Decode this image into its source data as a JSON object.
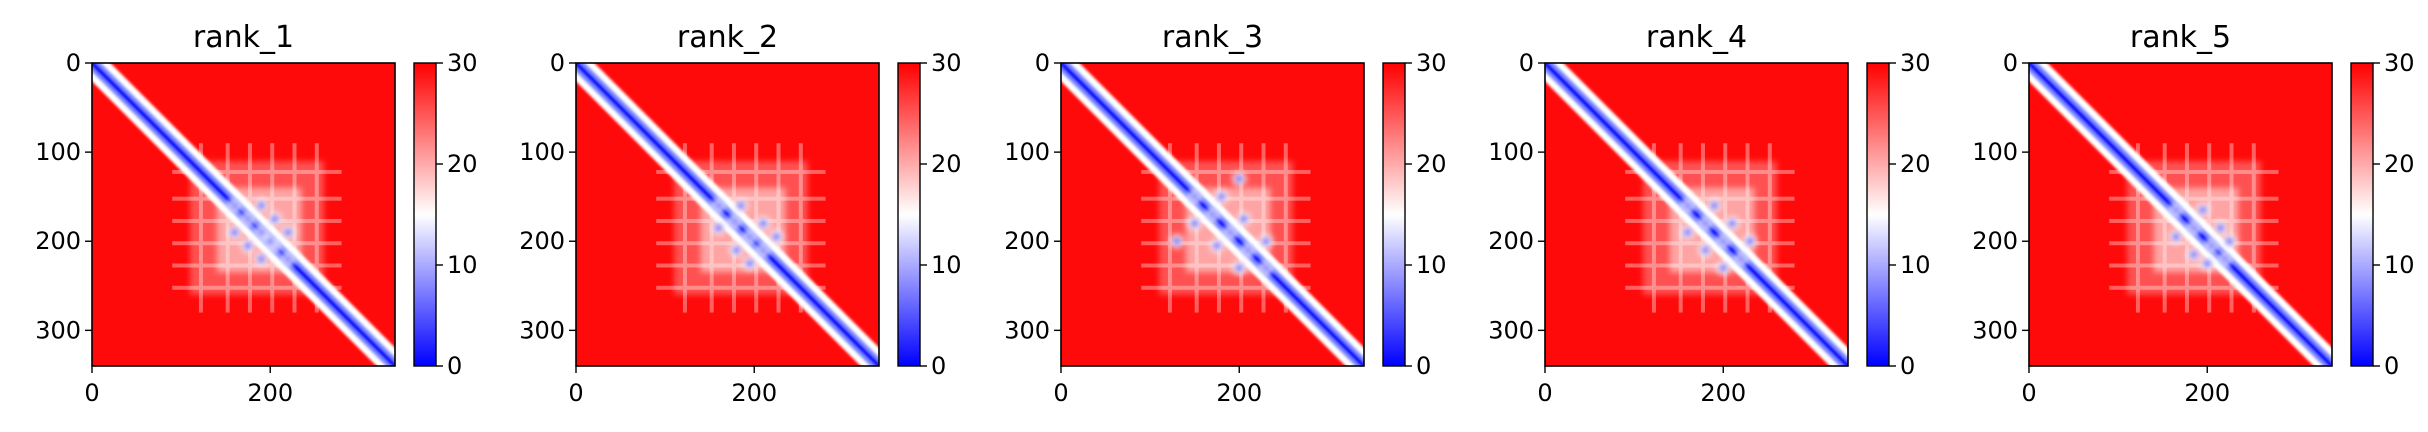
{
  "chart_data": [
    {
      "type": "heatmap",
      "title": "rank_1",
      "n": 340,
      "xlim": [
        0,
        340
      ],
      "ylim": [
        340,
        0
      ],
      "xticks": [
        0,
        200
      ],
      "yticks": [
        0,
        100,
        200,
        300
      ],
      "colorbar": {
        "min": 0,
        "max": 30,
        "ticks": [
          0,
          10,
          20,
          30
        ],
        "colormap": [
          "#0000ff",
          "#ffffff",
          "#ff0000"
        ]
      },
      "contact_blobs": [
        [
          160,
          160
        ],
        [
          175,
          175
        ],
        [
          190,
          190
        ],
        [
          205,
          205
        ],
        [
          220,
          220
        ],
        [
          160,
          190
        ],
        [
          175,
          205
        ],
        [
          190,
          220
        ],
        [
          200,
          200
        ]
      ]
    },
    {
      "type": "heatmap",
      "title": "rank_2",
      "n": 340,
      "xlim": [
        0,
        340
      ],
      "ylim": [
        340,
        0
      ],
      "xticks": [
        0,
        200
      ],
      "yticks": [
        0,
        100,
        200,
        300
      ],
      "colorbar": {
        "min": 0,
        "max": 30,
        "ticks": [
          0,
          10,
          20,
          30
        ],
        "colormap": [
          "#0000ff",
          "#ffffff",
          "#ff0000"
        ]
      },
      "contact_blobs": [
        [
          160,
          160
        ],
        [
          178,
          178
        ],
        [
          195,
          195
        ],
        [
          210,
          210
        ],
        [
          160,
          185
        ],
        [
          180,
          210
        ],
        [
          195,
          225
        ]
      ]
    },
    {
      "type": "heatmap",
      "title": "rank_3",
      "n": 340,
      "xlim": [
        0,
        340
      ],
      "ylim": [
        340,
        0
      ],
      "xticks": [
        0,
        200
      ],
      "yticks": [
        0,
        100,
        200,
        300
      ],
      "colorbar": {
        "min": 0,
        "max": 30,
        "ticks": [
          0,
          10,
          20,
          30
        ],
        "colormap": [
          "#0000ff",
          "#ffffff",
          "#ff0000"
        ]
      },
      "contact_blobs": [
        [
          150,
          150
        ],
        [
          170,
          170
        ],
        [
          190,
          190
        ],
        [
          210,
          210
        ],
        [
          230,
          230
        ],
        [
          150,
          180
        ],
        [
          175,
          205
        ],
        [
          200,
          230
        ],
        [
          130,
          200
        ]
      ]
    },
    {
      "type": "heatmap",
      "title": "rank_4",
      "n": 340,
      "xlim": [
        0,
        340
      ],
      "ylim": [
        340,
        0
      ],
      "xticks": [
        0,
        200
      ],
      "yticks": [
        0,
        100,
        200,
        300
      ],
      "colorbar": {
        "min": 0,
        "max": 30,
        "ticks": [
          0,
          10,
          20,
          30
        ],
        "colormap": [
          "#0000ff",
          "#ffffff",
          "#ff0000"
        ]
      },
      "contact_blobs": [
        [
          160,
          160
        ],
        [
          180,
          180
        ],
        [
          200,
          200
        ],
        [
          220,
          220
        ],
        [
          160,
          190
        ],
        [
          180,
          210
        ],
        [
          200,
          230
        ]
      ]
    },
    {
      "type": "heatmap",
      "title": "rank_5",
      "n": 340,
      "xlim": [
        0,
        340
      ],
      "ylim": [
        340,
        0
      ],
      "xticks": [
        0,
        200
      ],
      "yticks": [
        0,
        100,
        200,
        300
      ],
      "colorbar": {
        "min": 0,
        "max": 30,
        "ticks": [
          0,
          10,
          20,
          30
        ],
        "colormap": [
          "#0000ff",
          "#ffffff",
          "#ff0000"
        ]
      },
      "contact_blobs": [
        [
          165,
          165
        ],
        [
          185,
          185
        ],
        [
          205,
          205
        ],
        [
          220,
          220
        ],
        [
          165,
          195
        ],
        [
          185,
          215
        ],
        [
          200,
          225
        ]
      ]
    }
  ]
}
